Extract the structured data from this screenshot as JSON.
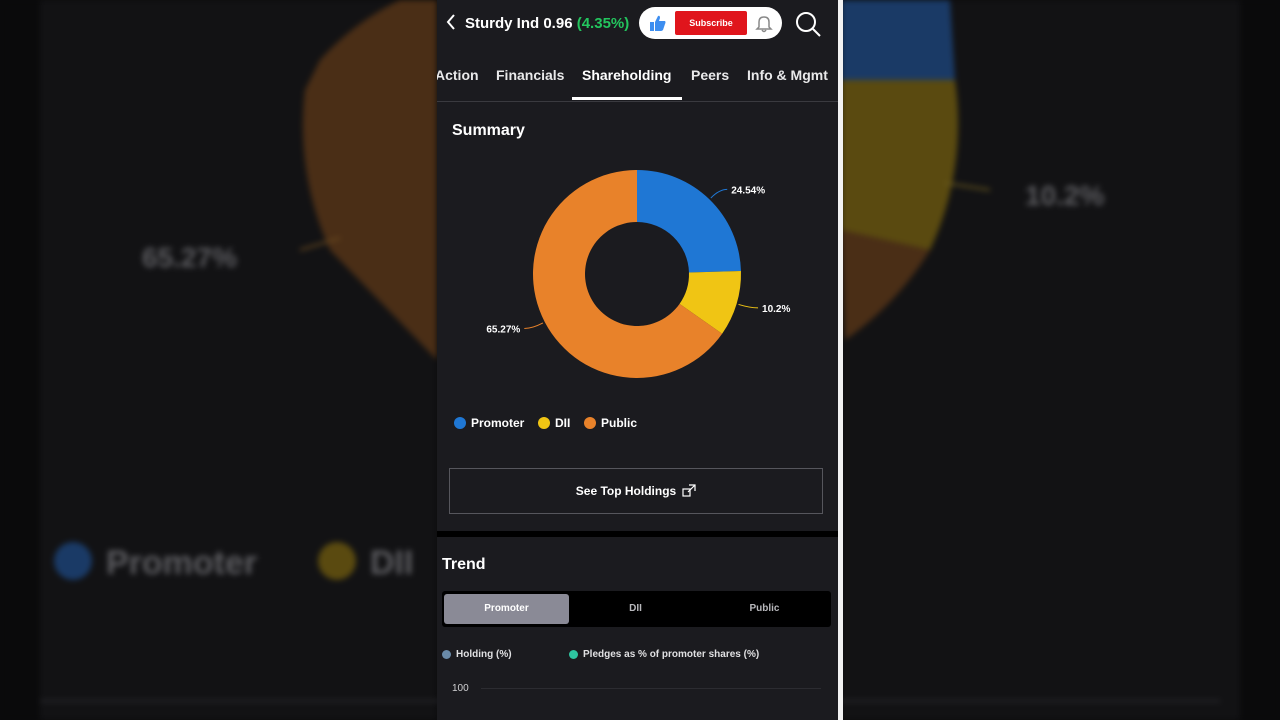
{
  "app": {
    "ticker": "Sturdy Ind",
    "price": "0.96",
    "change_pct": "(4.35%)",
    "subscribe_label": "Subscribe"
  },
  "tabs": [
    "Action",
    "Financials",
    "Shareholding",
    "Peers",
    "Info & Mgmt"
  ],
  "active_tab": "Shareholding",
  "summary": {
    "title": "Summary",
    "see_top_holdings": "See Top Holdings"
  },
  "chart_data": {
    "type": "pie",
    "categories": [
      "Promoter",
      "DII",
      "Public"
    ],
    "values": [
      24.54,
      10.2,
      65.27
    ],
    "labels": [
      "24.54%",
      "10.2%",
      "65.27%"
    ],
    "colors": [
      "#1f77d4",
      "#f0c514",
      "#e8822a"
    ],
    "donut": true,
    "legend_position": "bottom-left"
  },
  "trend": {
    "title": "Trend",
    "segments": [
      "Promoter",
      "DII",
      "Public"
    ],
    "active_segment": "Promoter",
    "legend": [
      "Holding (%)",
      "Pledges as % of promoter shares (%)"
    ],
    "legend_colors": [
      "#6a8aa8",
      "#2ec4a0"
    ],
    "y_top_tick": "100"
  },
  "background": {
    "left_label": "65.27%",
    "right_label": "10.2%",
    "legend_promoter": "Promoter",
    "legend_dii": "DII"
  },
  "icons": [
    "chevron-left-icon",
    "thumbs-up-icon",
    "bell-icon",
    "search-icon",
    "external-link-icon"
  ]
}
